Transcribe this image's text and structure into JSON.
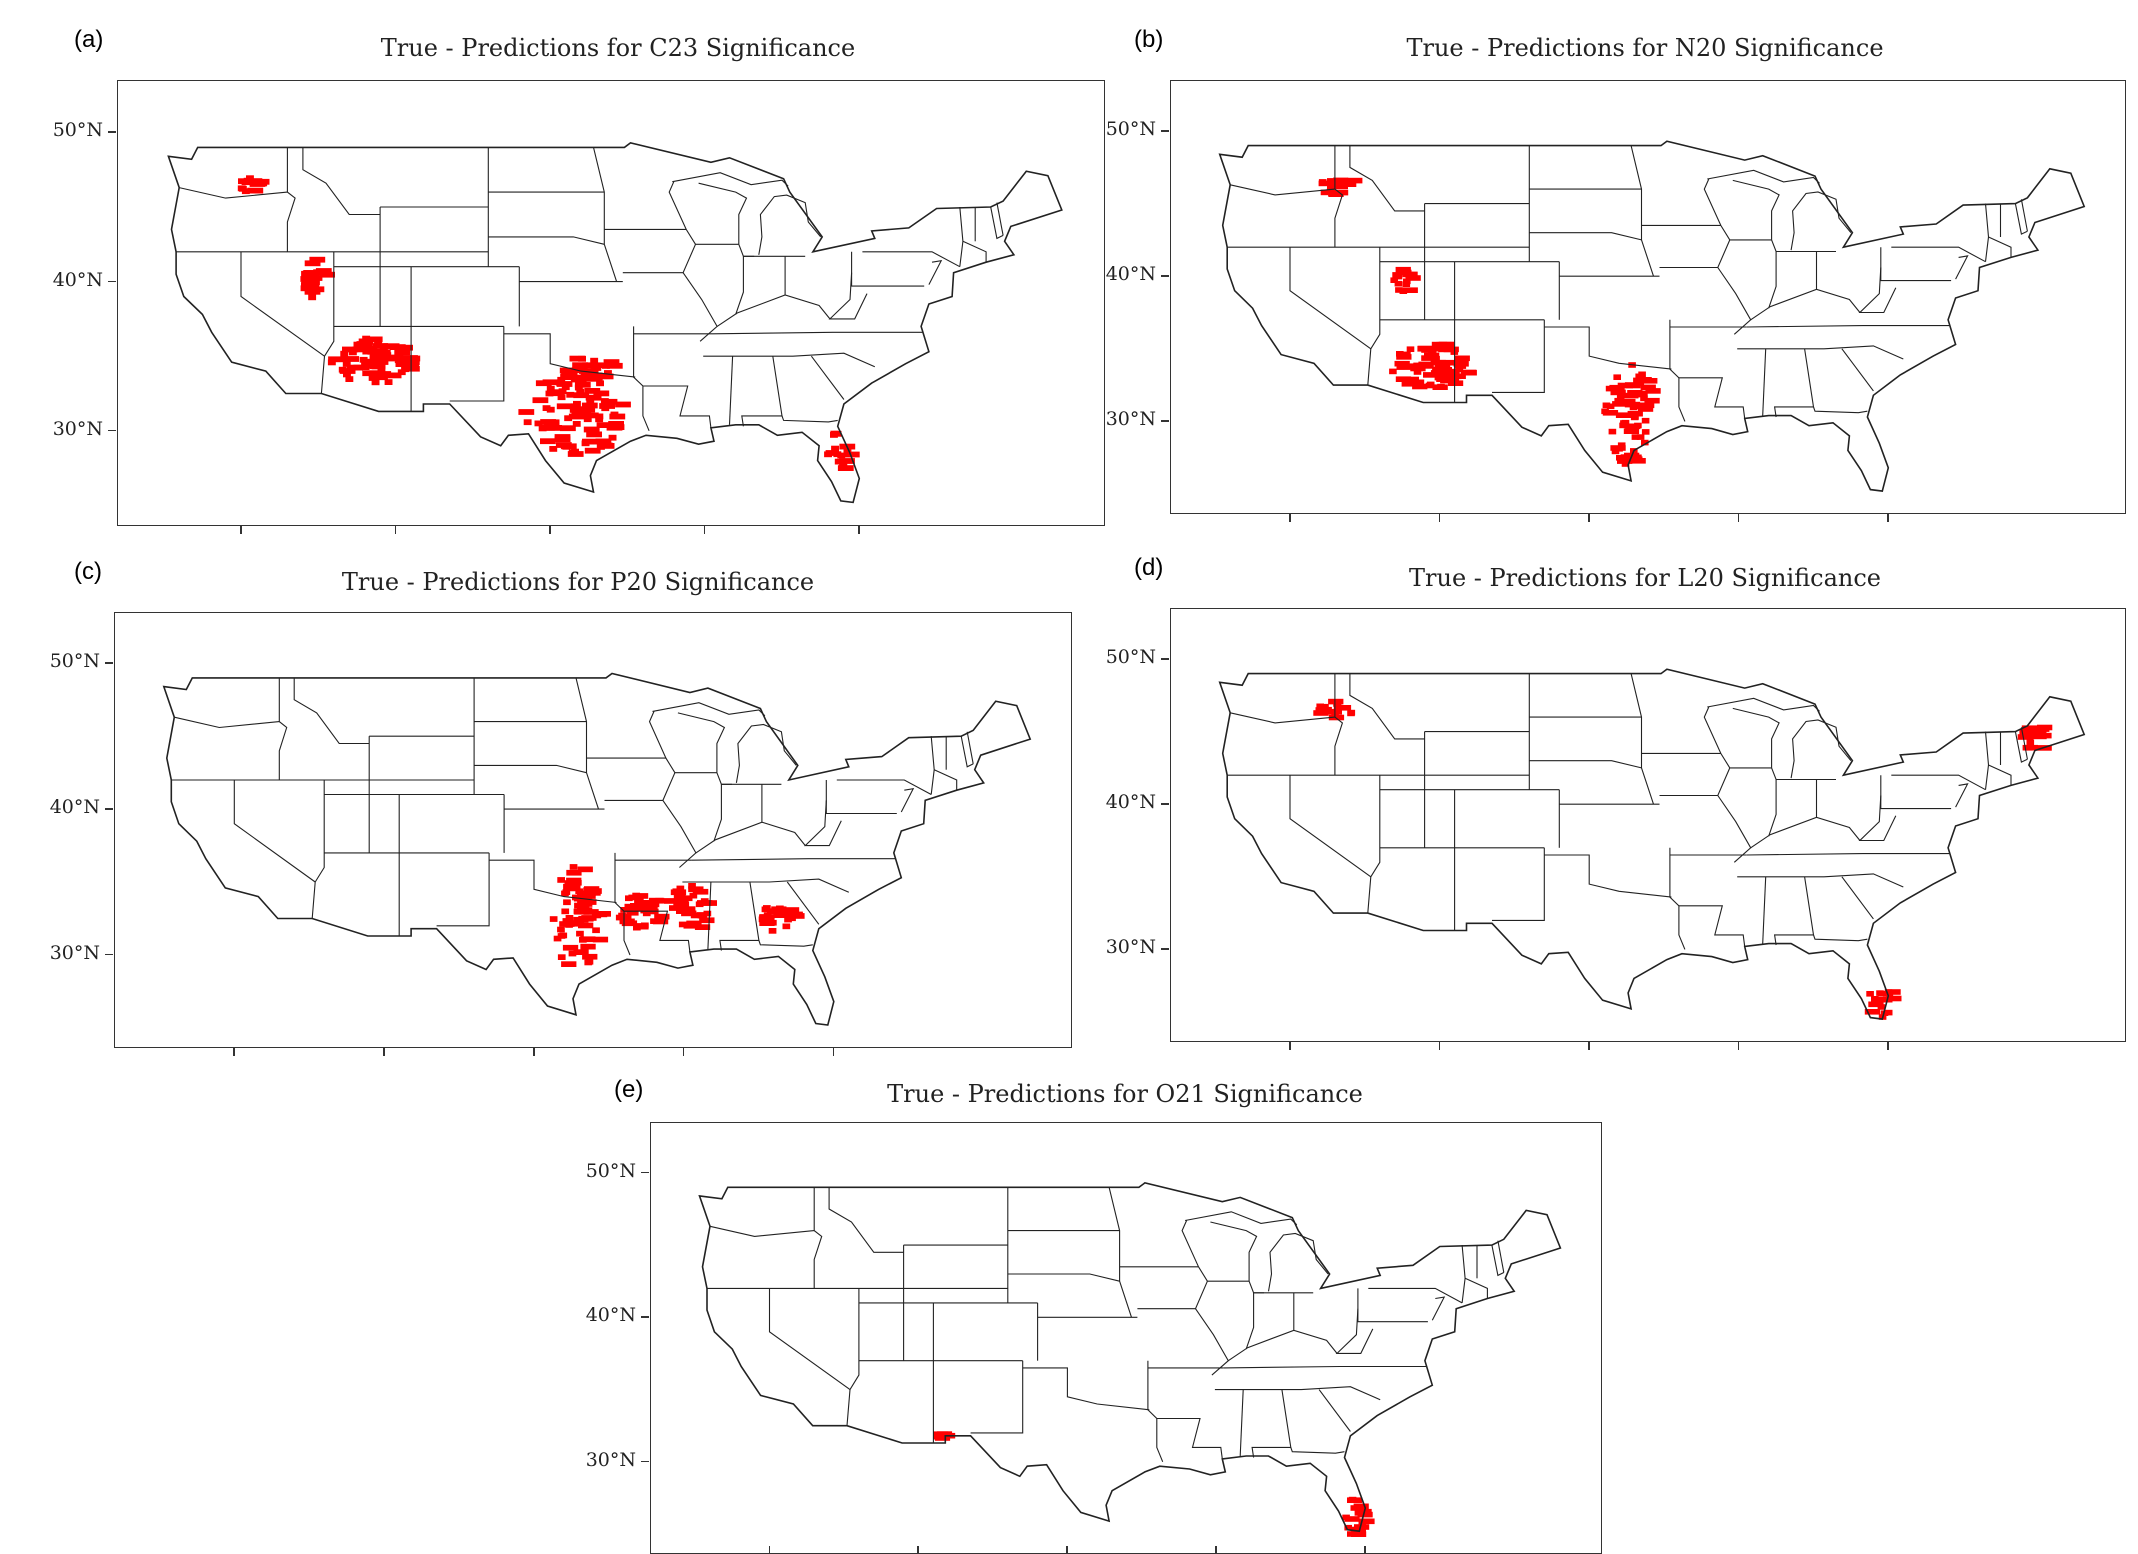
{
  "panels": [
    {
      "label": "(a)",
      "title": "True - Predictions for C23 Significance",
      "lat_ticks": [
        "50°N",
        "40°N",
        "30°N"
      ]
    },
    {
      "label": "(b)",
      "title": "True - Predictions for N20 Significance",
      "lat_ticks": [
        "50°N",
        "40°N",
        "30°N"
      ]
    },
    {
      "label": "(c)",
      "title": "True - Predictions for P20 Significance",
      "lat_ticks": [
        "50°N",
        "40°N",
        "30°N"
      ]
    },
    {
      "label": "(d)",
      "title": "True - Predictions for L20 Significance",
      "lat_ticks": [
        "50°N",
        "40°N",
        "30°N"
      ]
    },
    {
      "label": "(e)",
      "title": "True - Predictions for O21 Significance",
      "lat_ticks": [
        "50°N",
        "40°N",
        "30°N"
      ]
    }
  ],
  "colors": {
    "highlight": "#ff0000",
    "state_border": "#222222",
    "frame": "#333333"
  },
  "map_extent": {
    "lon": [
      -127,
      -65
    ],
    "lat": [
      24,
      53
    ]
  },
  "significant_cells": [
    {
      "panel": 0,
      "region": "washington",
      "lon": -119.6,
      "lat": 46.5
    },
    {
      "panel": 0,
      "region": "nevada",
      "lon": -115.3,
      "lat": 40.2
    },
    {
      "panel": 0,
      "region": "arizona",
      "lon": -111.6,
      "lat": 34.6
    },
    {
      "panel": 0,
      "region": "texas-central",
      "lon": -98.6,
      "lat": 31.2
    },
    {
      "panel": 0,
      "region": "oklahoma",
      "lon": -98.0,
      "lat": 34.2
    },
    {
      "panel": 0,
      "region": "florida",
      "lon": -81.5,
      "lat": 28.5
    },
    {
      "panel": 1,
      "region": "idaho",
      "lon": -116.8,
      "lat": 46.2
    },
    {
      "panel": 1,
      "region": "utah",
      "lon": -112.5,
      "lat": 39.5
    },
    {
      "panel": 1,
      "region": "arizona",
      "lon": -110.6,
      "lat": 33.8
    },
    {
      "panel": 1,
      "region": "texas-east",
      "lon": -97.4,
      "lat": 30.6
    },
    {
      "panel": 2,
      "region": "texas-east",
      "lon": -97.2,
      "lat": 32.5
    },
    {
      "panel": 2,
      "region": "louisiana",
      "lon": -93.0,
      "lat": 33.0
    },
    {
      "panel": 2,
      "region": "mississippi",
      "lon": -89.8,
      "lat": 33.2
    },
    {
      "panel": 2,
      "region": "georgia",
      "lon": -83.8,
      "lat": 32.5
    },
    {
      "panel": 3,
      "region": "idaho",
      "lon": -117.0,
      "lat": 46.5
    },
    {
      "panel": 3,
      "region": "maine",
      "lon": -70.3,
      "lat": 44.6
    },
    {
      "panel": 3,
      "region": "florida",
      "lon": -80.6,
      "lat": 26.3
    },
    {
      "panel": 4,
      "region": "new-mexico",
      "lon": -108.8,
      "lat": 31.8
    },
    {
      "panel": 4,
      "region": "florida",
      "lon": -80.9,
      "lat": 26.2
    }
  ]
}
